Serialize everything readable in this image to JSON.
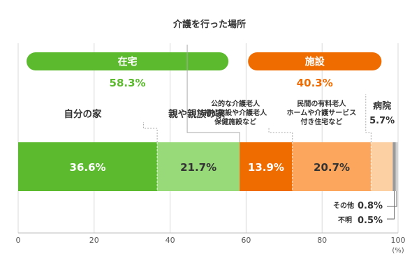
{
  "chart_data": {
    "type": "bar",
    "orientation": "horizontal-stacked",
    "title": "介護を行った場所",
    "x_ticks": [
      "0",
      "20",
      "40",
      "60",
      "80",
      "100"
    ],
    "x_unit": "(%)",
    "xlim": [
      0,
      100
    ],
    "grid": true,
    "groups": [
      {
        "label": "在宅",
        "total_label": "58.3%",
        "start": 0,
        "end": 58.3,
        "color": "#5bba2e"
      },
      {
        "label": "施設",
        "total_label": "40.3%",
        "start": 58.3,
        "end": 98.6,
        "color": "#ef6c00"
      }
    ],
    "segments": [
      {
        "category": "自分の家",
        "value": 36.6,
        "label": "36.6%",
        "color": "#5bba2e",
        "text_color": "#ffffff"
      },
      {
        "category": "親や親族の家",
        "value": 21.7,
        "label": "21.7%",
        "color": "#98d97a",
        "text_color": "#333333"
      },
      {
        "category": "公的な介護老人\n福祉施設や介護老人\n保健施設など",
        "value": 13.9,
        "label": "13.9%",
        "color": "#ef6c00",
        "text_color": "#ffffff"
      },
      {
        "category": "民間の有料老人\nホームや介護サービス\n付き住宅など",
        "value": 20.7,
        "label": "20.7%",
        "color": "#fba65c",
        "text_color": "#333333"
      },
      {
        "category": "病院",
        "value": 5.7,
        "label": "5.7%",
        "color": "#fdd0a4",
        "text_color": "#333333"
      },
      {
        "category": "その他",
        "value": 0.8,
        "label": "0.8%",
        "color": "#9a9a9a",
        "text_color": "#333333"
      },
      {
        "category": "不明",
        "value": 0.5,
        "label": "0.5%",
        "color": "#cfcfcf",
        "text_color": "#333333"
      }
    ]
  }
}
